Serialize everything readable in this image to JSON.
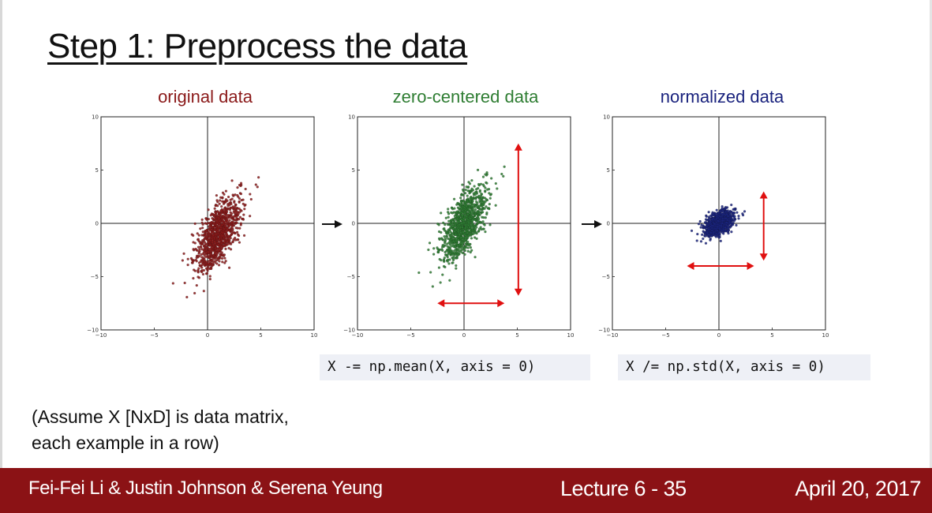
{
  "slide": {
    "title": "Step 1: Preprocess the data",
    "note_line1": "(Assume X [NxD] is data matrix,",
    "note_line2": "each example in a row)",
    "code_mean": "X -= np.mean(X, axis = 0)",
    "code_std": "X /= np.std(X, axis = 0)"
  },
  "footer": {
    "authors": "Fei-Fei Li & Justin Johnson & Serena Yeung",
    "lecture_label": "Lecture 6 -",
    "slide_number": "35",
    "date": "April 20, 2017"
  },
  "colors": {
    "original": "#8b1a1a",
    "zero_centered": "#2e7d32",
    "normalized": "#1a237e",
    "annotation_arrow": "#e01010",
    "footer_bg": "#8b1215"
  },
  "chart_data": [
    {
      "type": "scatter",
      "title": "original data",
      "xlim": [
        -10,
        10
      ],
      "ylim": [
        -10,
        10
      ],
      "xticks": [
        "−10",
        "−5",
        "0",
        "5",
        "10"
      ],
      "yticks": [
        "10",
        "5",
        "0",
        "−5",
        "−10"
      ],
      "grid": false,
      "axis_lines_at_zero": true,
      "distribution": {
        "center": [
          1.0,
          -1.0
        ],
        "major_axis_angle_deg": 66,
        "spread_major": 3.4,
        "spread_minor": 0.75,
        "n_points": 1000
      },
      "color": "#8b1a1a"
    },
    {
      "type": "scatter",
      "title": "zero-centered data",
      "xlim": [
        -10,
        10
      ],
      "ylim": [
        -10,
        10
      ],
      "xticks": [
        "−10",
        "−5",
        "0",
        "5",
        "10"
      ],
      "yticks": [
        "10",
        "5",
        "0",
        "−5",
        "−10"
      ],
      "grid": false,
      "axis_lines_at_zero": true,
      "distribution": {
        "center": [
          0.0,
          0.0
        ],
        "major_axis_angle_deg": 66,
        "spread_major": 3.4,
        "spread_minor": 0.75,
        "n_points": 1000
      },
      "color": "#2e7d32",
      "annotations": [
        {
          "type": "double-arrow",
          "orientation": "vertical",
          "x": 5.1,
          "from": -6.8,
          "to": 7.5
        },
        {
          "type": "double-arrow",
          "orientation": "horizontal",
          "y": -7.5,
          "from": -2.5,
          "to": 3.8
        }
      ]
    },
    {
      "type": "scatter",
      "title": "normalized data",
      "xlim": [
        -10,
        10
      ],
      "ylim": [
        -10,
        10
      ],
      "xticks": [
        "−10",
        "−5",
        "0",
        "5",
        "10"
      ],
      "yticks": [
        "10",
        "5",
        "0",
        "−5",
        "−10"
      ],
      "grid": false,
      "axis_lines_at_zero": true,
      "distribution": {
        "center": [
          0.0,
          0.0
        ],
        "major_axis_angle_deg": 42,
        "spread_major": 1.35,
        "spread_minor": 0.45,
        "n_points": 1000
      },
      "color": "#1a237e",
      "annotations": [
        {
          "type": "double-arrow",
          "orientation": "vertical",
          "x": 4.2,
          "from": -3.5,
          "to": 3.0
        },
        {
          "type": "double-arrow",
          "orientation": "horizontal",
          "y": -4.0,
          "from": -3.0,
          "to": 3.3
        }
      ]
    }
  ]
}
